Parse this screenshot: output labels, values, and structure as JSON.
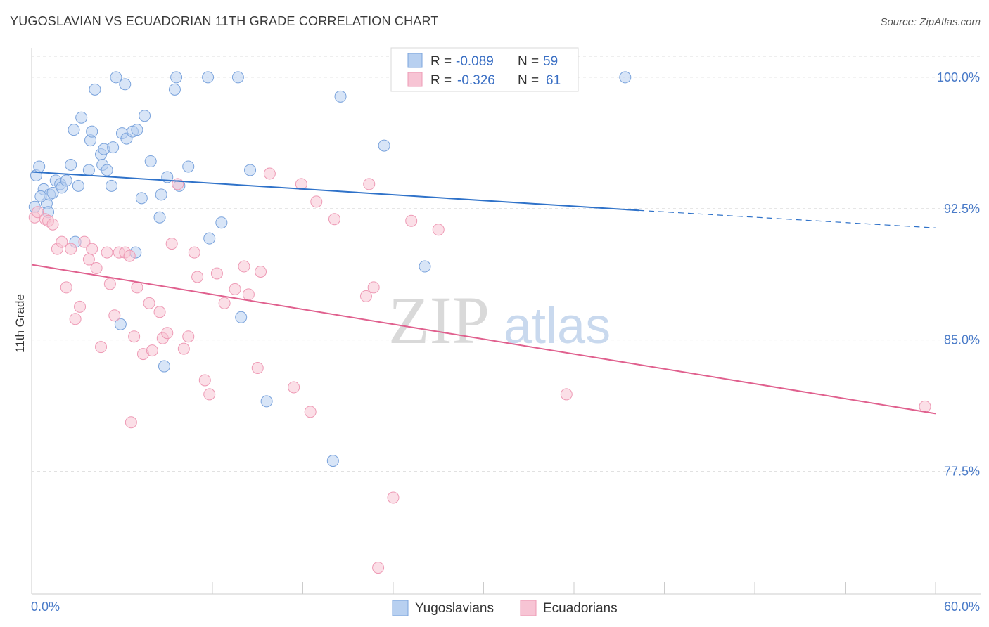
{
  "header": {
    "title": "YUGOSLAVIAN VS ECUADORIAN 11TH GRADE CORRELATION CHART",
    "source": "Source: ZipAtlas.com"
  },
  "watermark": {
    "zip": "ZIP",
    "atlas": "atlas"
  },
  "colors": {
    "blue_fill": "#b8d0f0",
    "blue_stroke": "#7aa3dc",
    "blue_line": "#2f72c9",
    "pink_fill": "#f7c4d4",
    "pink_stroke": "#ee9ab5",
    "pink_line": "#e0608e",
    "grid": "#dddddd",
    "tick_text": "#4a7bc8"
  },
  "legend": {
    "rows": [
      {
        "r_label": "R = ",
        "r_value": "-0.089",
        "n_label": "N = ",
        "n_value": "59",
        "color": "blue"
      },
      {
        "r_label": "R = ",
        "r_value": "-0.326",
        "n_label": "N = ",
        "n_value": "61",
        "color": "pink"
      }
    ]
  },
  "bottom_legend": [
    "Yugoslavians",
    "Ecuadorians"
  ],
  "chart_data": {
    "type": "scatter",
    "title": "YUGOSLAVIAN VS ECUADORIAN 11TH GRADE CORRELATION CHART",
    "xlabel": "",
    "ylabel": "11th Grade",
    "xlim": [
      0,
      60
    ],
    "ylim": [
      70.5,
      101.2
    ],
    "x_tick_labels": [
      "0.0%",
      "60.0%"
    ],
    "y_ticks": [
      77.5,
      85.0,
      92.5,
      100.0
    ],
    "y_tick_labels": [
      "77.5%",
      "85.0%",
      "92.5%",
      "100.0%"
    ],
    "grid": true,
    "legend_position": "top-center",
    "series": [
      {
        "name": "Yugoslavians",
        "color": "blue",
        "trend": {
          "x": [
            0,
            40.3
          ],
          "y": [
            94.6,
            92.4
          ],
          "dashed_to": [
            60,
            91.4
          ]
        },
        "points": [
          [
            0.3,
            94.4
          ],
          [
            0.5,
            94.9
          ],
          [
            0.8,
            93.6
          ],
          [
            1.0,
            92.8
          ],
          [
            1.2,
            93.3
          ],
          [
            1.4,
            93.4
          ],
          [
            1.6,
            94.1
          ],
          [
            1.9,
            93.9
          ],
          [
            2.0,
            93.7
          ],
          [
            2.3,
            94.1
          ],
          [
            2.6,
            95.0
          ],
          [
            2.8,
            97.0
          ],
          [
            3.1,
            93.8
          ],
          [
            3.3,
            97.7
          ],
          [
            3.8,
            94.7
          ],
          [
            3.9,
            96.4
          ],
          [
            4.0,
            96.9
          ],
          [
            4.2,
            99.3
          ],
          [
            4.6,
            95.6
          ],
          [
            4.7,
            95.0
          ],
          [
            4.8,
            95.9
          ],
          [
            5.0,
            94.7
          ],
          [
            5.3,
            93.8
          ],
          [
            5.4,
            96.0
          ],
          [
            5.6,
            100.0
          ],
          [
            5.9,
            85.9
          ],
          [
            6.0,
            96.8
          ],
          [
            6.2,
            99.6
          ],
          [
            6.3,
            96.5
          ],
          [
            6.7,
            96.9
          ],
          [
            6.9,
            90.0
          ],
          [
            7.0,
            97.0
          ],
          [
            7.3,
            93.1
          ],
          [
            7.5,
            97.8
          ],
          [
            7.9,
            95.2
          ],
          [
            8.5,
            92.0
          ],
          [
            8.6,
            93.3
          ],
          [
            8.8,
            83.5
          ],
          [
            9.0,
            94.3
          ],
          [
            9.5,
            99.3
          ],
          [
            9.6,
            100.0
          ],
          [
            9.8,
            93.8
          ],
          [
            10.4,
            94.9
          ],
          [
            11.7,
            100.0
          ],
          [
            11.8,
            90.8
          ],
          [
            12.6,
            91.7
          ],
          [
            13.7,
            100.0
          ],
          [
            13.9,
            86.3
          ],
          [
            14.5,
            94.7
          ],
          [
            15.6,
            81.5
          ],
          [
            20.0,
            78.1
          ],
          [
            20.5,
            98.9
          ],
          [
            23.4,
            96.1
          ],
          [
            26.1,
            89.2
          ],
          [
            39.4,
            100.0
          ],
          [
            0.2,
            92.6
          ],
          [
            2.9,
            90.6
          ],
          [
            0.6,
            93.2
          ],
          [
            1.1,
            92.3
          ]
        ]
      },
      {
        "name": "Ecuadorians",
        "color": "pink",
        "trend": {
          "x": [
            0,
            60
          ],
          "y": [
            89.3,
            80.8
          ]
        },
        "points": [
          [
            0.2,
            92.0
          ],
          [
            0.4,
            92.3
          ],
          [
            0.9,
            91.9
          ],
          [
            1.1,
            91.8
          ],
          [
            1.4,
            91.6
          ],
          [
            1.7,
            90.2
          ],
          [
            2.0,
            90.6
          ],
          [
            2.3,
            88.0
          ],
          [
            2.6,
            90.2
          ],
          [
            2.9,
            86.2
          ],
          [
            3.2,
            86.9
          ],
          [
            3.5,
            90.6
          ],
          [
            3.8,
            89.6
          ],
          [
            4.0,
            90.2
          ],
          [
            4.3,
            89.1
          ],
          [
            4.6,
            84.6
          ],
          [
            5.0,
            90.0
          ],
          [
            5.2,
            88.2
          ],
          [
            5.5,
            86.4
          ],
          [
            5.8,
            90.0
          ],
          [
            6.2,
            90.0
          ],
          [
            6.5,
            89.8
          ],
          [
            6.8,
            85.2
          ],
          [
            7.0,
            88.0
          ],
          [
            7.4,
            84.2
          ],
          [
            7.8,
            87.1
          ],
          [
            8.0,
            84.4
          ],
          [
            8.5,
            86.6
          ],
          [
            8.7,
            85.1
          ],
          [
            9.0,
            85.4
          ],
          [
            9.3,
            90.5
          ],
          [
            9.7,
            93.9
          ],
          [
            10.1,
            84.5
          ],
          [
            10.4,
            85.2
          ],
          [
            10.8,
            90.0
          ],
          [
            11.0,
            88.6
          ],
          [
            11.5,
            82.7
          ],
          [
            11.8,
            81.9
          ],
          [
            12.3,
            88.8
          ],
          [
            12.8,
            87.1
          ],
          [
            13.5,
            87.9
          ],
          [
            14.1,
            89.2
          ],
          [
            14.4,
            87.6
          ],
          [
            15.0,
            83.4
          ],
          [
            15.2,
            88.9
          ],
          [
            15.8,
            94.5
          ],
          [
            17.4,
            82.3
          ],
          [
            17.9,
            93.9
          ],
          [
            18.5,
            80.9
          ],
          [
            18.9,
            92.9
          ],
          [
            20.1,
            91.9
          ],
          [
            22.2,
            87.5
          ],
          [
            22.4,
            93.9
          ],
          [
            22.7,
            88.0
          ],
          [
            23.0,
            72.0
          ],
          [
            24.0,
            76.0
          ],
          [
            25.2,
            91.8
          ],
          [
            27.0,
            91.3
          ],
          [
            35.5,
            81.9
          ],
          [
            59.3,
            81.2
          ],
          [
            6.6,
            80.3
          ]
        ]
      }
    ]
  }
}
